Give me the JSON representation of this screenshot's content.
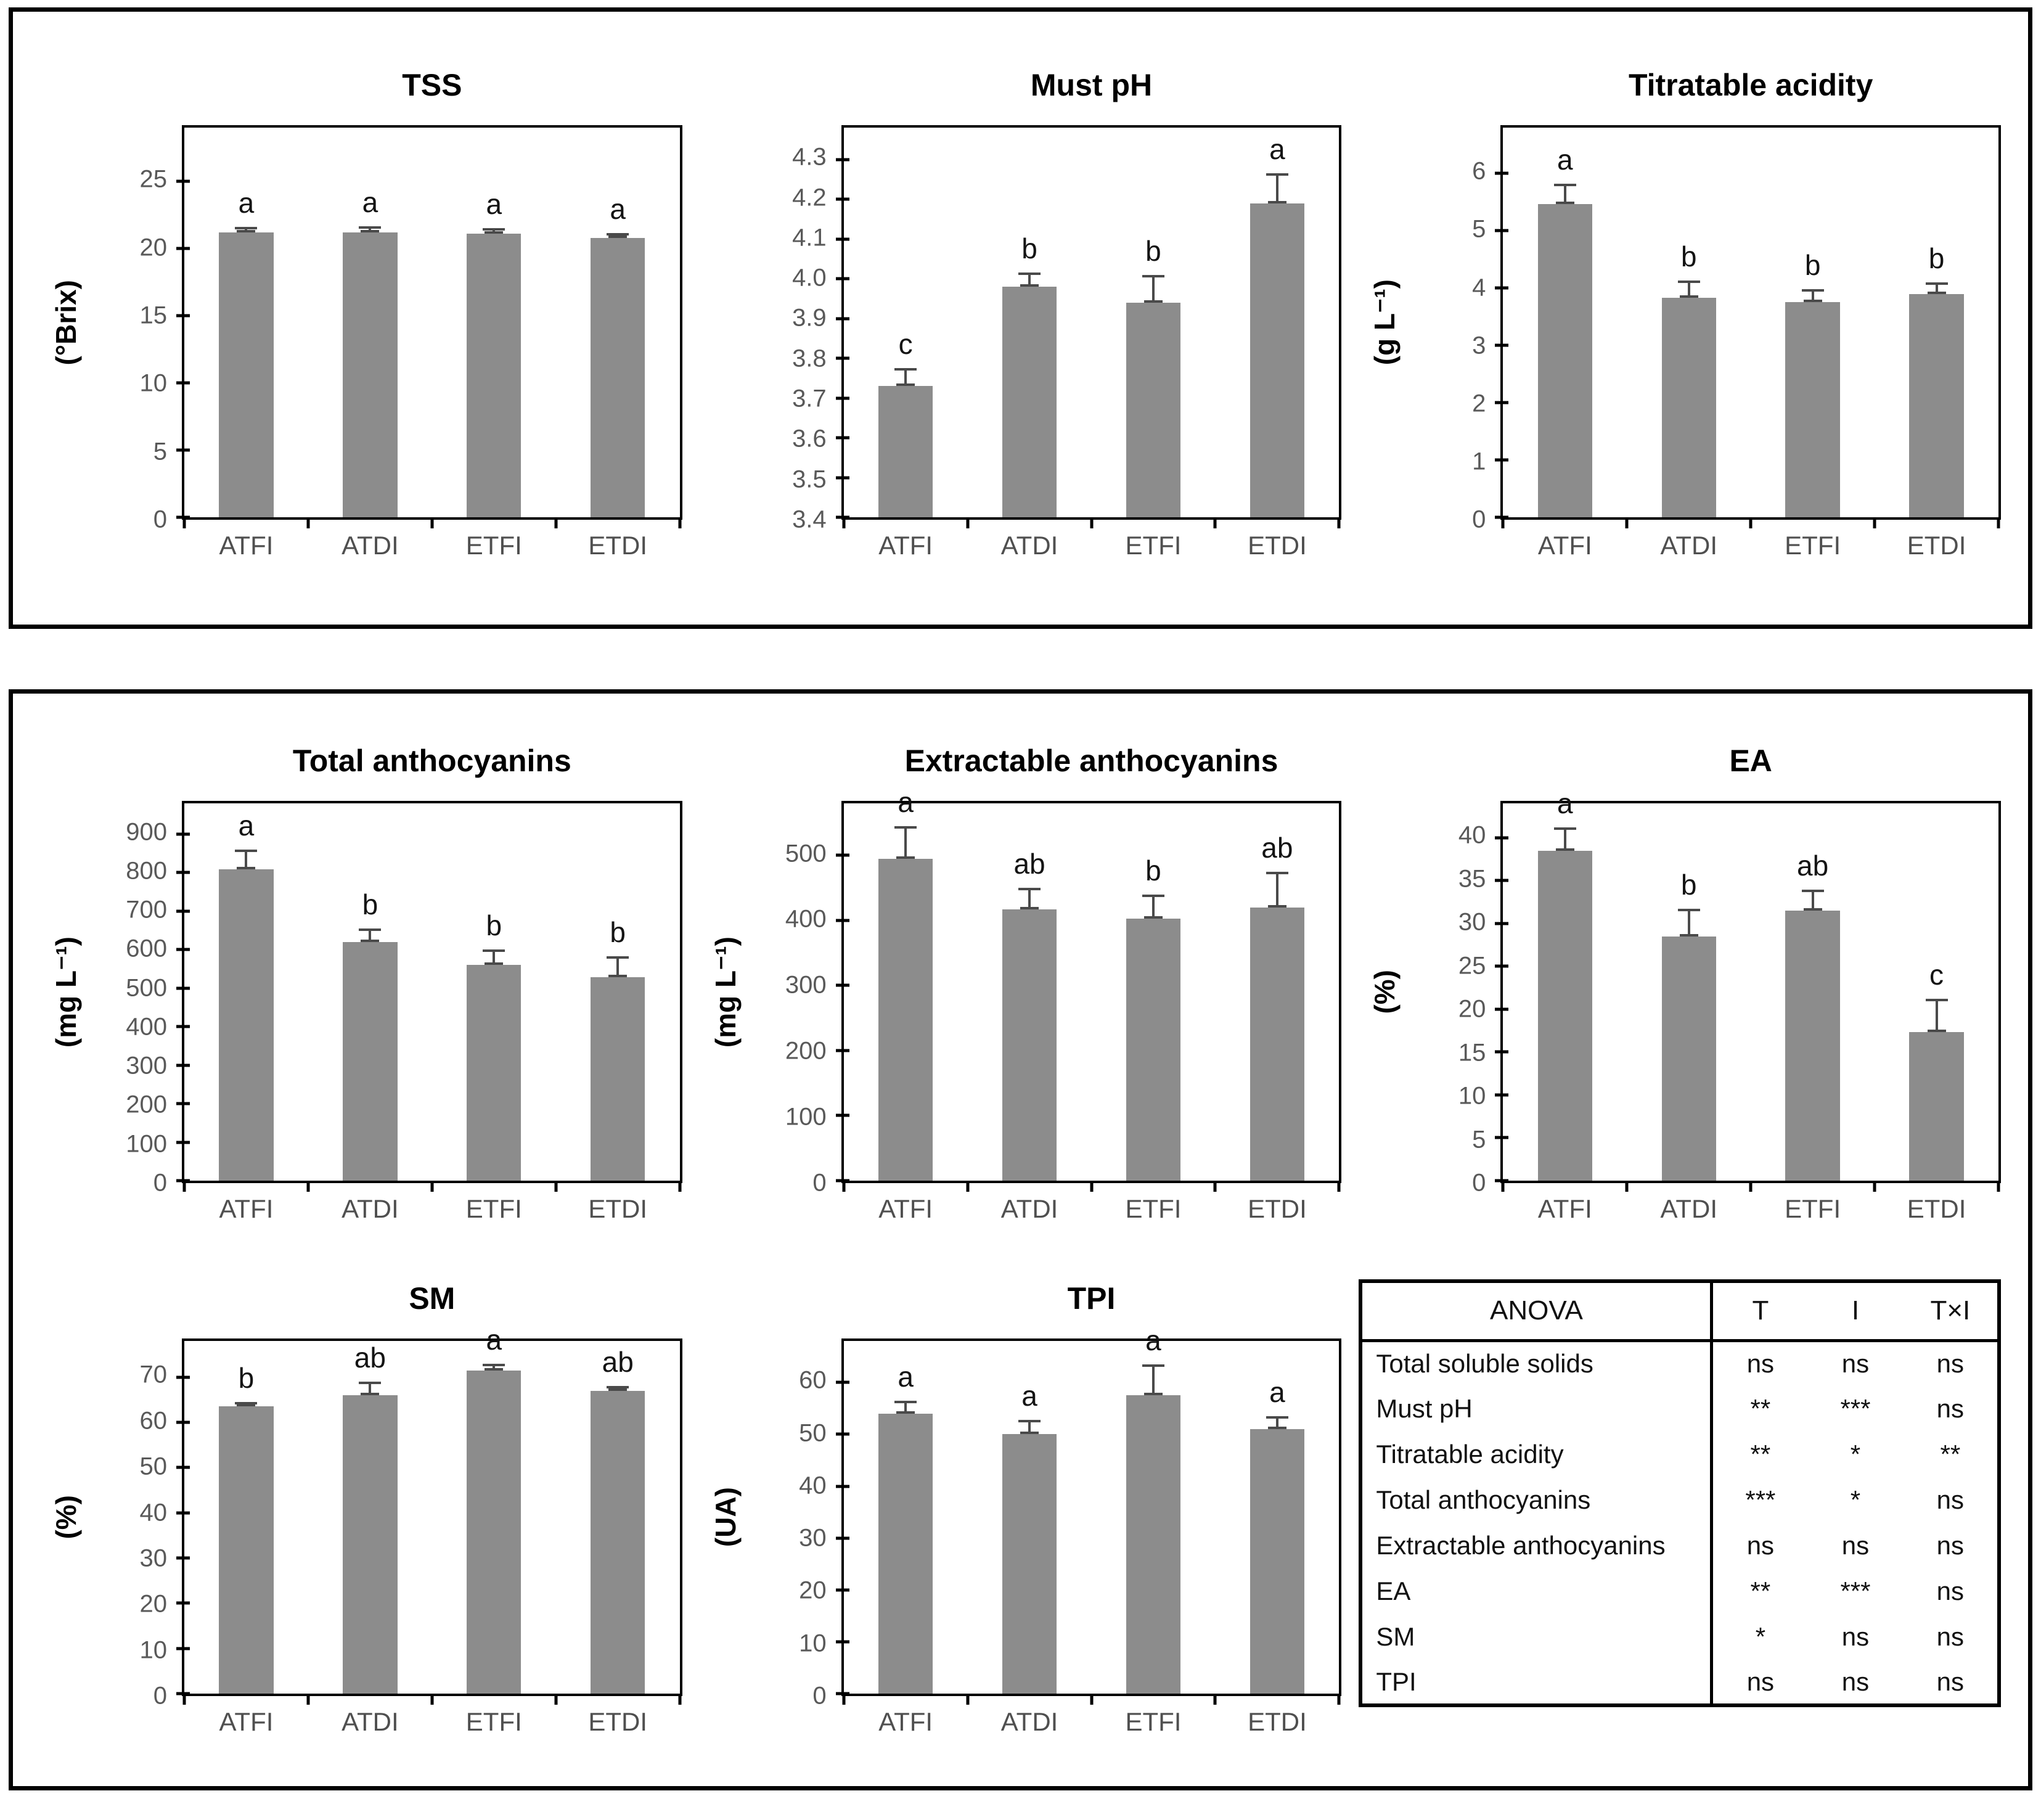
{
  "colors": {
    "bar_fill": "#8c8c8c",
    "error_bar": "#4a4a4a",
    "axis": "#000000",
    "tick_label": "#595959",
    "category_label": "#4f4f4f",
    "title": "#000000",
    "panel_border": "#000000"
  },
  "chart_data": [
    {
      "type": "bar",
      "title": "TSS",
      "ylabel": "(°Brix)",
      "categories": [
        "ATFI",
        "ATDI",
        "ETFI",
        "ETDI"
      ],
      "values": [
        21.2,
        21.2,
        21.1,
        20.8
      ],
      "errors": [
        0.4,
        0.45,
        0.4,
        0.35
      ],
      "sig_letters": [
        "a",
        "a",
        "a",
        "a"
      ],
      "ymin": 0,
      "ymax": 29,
      "yticks": [
        "0",
        "5",
        "10",
        "15",
        "20",
        "25"
      ],
      "grid": "off",
      "legend": "none"
    },
    {
      "type": "bar",
      "title": "Must pH",
      "ylabel": "",
      "categories": [
        "ATFI",
        "ATDI",
        "ETFI",
        "ETDI"
      ],
      "values": [
        3.73,
        3.98,
        3.94,
        4.19
      ],
      "errors": [
        0.045,
        0.035,
        0.07,
        0.075
      ],
      "sig_letters": [
        "c",
        "b",
        "b",
        "a"
      ],
      "ymin": 3.4,
      "ymax": 4.38,
      "yticks": [
        "3.4",
        "3.5",
        "3.6",
        "3.7",
        "3.8",
        "3.9",
        "4.0",
        "4.1",
        "4.2",
        "4.3"
      ],
      "grid": "off",
      "legend": "none"
    },
    {
      "type": "bar",
      "title": "Titratable acidity",
      "ylabel": "(g L⁻¹)",
      "categories": [
        "ATFI",
        "ATDI",
        "ETFI",
        "ETDI"
      ],
      "values": [
        5.47,
        3.83,
        3.76,
        3.9
      ],
      "errors": [
        0.35,
        0.3,
        0.22,
        0.2
      ],
      "sig_letters": [
        "a",
        "b",
        "b",
        "b"
      ],
      "ymin": 0,
      "ymax": 6.8,
      "yticks": [
        "0",
        "1",
        "2",
        "3",
        "4",
        "5",
        "6"
      ],
      "grid": "off",
      "legend": "none"
    },
    {
      "type": "bar",
      "title": "Total anthocyanins",
      "ylabel": "(mg L⁻¹)",
      "categories": [
        "ATFI",
        "ATDI",
        "ETFI",
        "ETDI"
      ],
      "values": [
        808,
        620,
        560,
        528
      ],
      "errors": [
        52,
        35,
        40,
        55
      ],
      "sig_letters": [
        "a",
        "b",
        "b",
        "b"
      ],
      "ymin": 0,
      "ymax": 980,
      "yticks": [
        "0",
        "100",
        "200",
        "300",
        "400",
        "500",
        "600",
        "700",
        "800",
        "900"
      ],
      "grid": "off",
      "legend": "none"
    },
    {
      "type": "bar",
      "title": "Extractable anthocyanins",
      "ylabel": "(mg L⁻¹)",
      "categories": [
        "ATFI",
        "ATDI",
        "ETFI",
        "ETDI"
      ],
      "values": [
        495,
        417,
        403,
        420
      ],
      "errors": [
        50,
        33,
        37,
        55
      ],
      "sig_letters": [
        "a",
        "ab",
        "b",
        "ab"
      ],
      "ymin": 0,
      "ymax": 580,
      "yticks": [
        "0",
        "100",
        "200",
        "300",
        "400",
        "500"
      ],
      "grid": "off",
      "legend": "none"
    },
    {
      "type": "bar",
      "title": "EA",
      "ylabel": "(%)",
      "categories": [
        "ATFI",
        "ATDI",
        "ETFI",
        "ETDI"
      ],
      "values": [
        38.5,
        28.5,
        31.5,
        17.3
      ],
      "errors": [
        2.7,
        3.2,
        2.4,
        3.9
      ],
      "sig_letters": [
        "a",
        "b",
        "ab",
        "c"
      ],
      "ymin": 0,
      "ymax": 44,
      "yticks": [
        "0",
        "5",
        "10",
        "15",
        "20",
        "25",
        "30",
        "35",
        "40"
      ],
      "grid": "off",
      "legend": "none"
    },
    {
      "type": "bar",
      "title": "SM",
      "ylabel": "(%)",
      "categories": [
        "ATFI",
        "ATDI",
        "ETFI",
        "ETDI"
      ],
      "values": [
        63.5,
        66,
        71.5,
        67
      ],
      "errors": [
        1,
        3,
        1.5,
        1
      ],
      "sig_letters": [
        "b",
        "ab",
        "a",
        "ab"
      ],
      "ymin": 0,
      "ymax": 78,
      "yticks": [
        "0",
        "10",
        "20",
        "30",
        "40",
        "50",
        "60",
        "70"
      ],
      "grid": "off",
      "legend": "none"
    },
    {
      "type": "bar",
      "title": "TPI",
      "ylabel": "(UA)",
      "categories": [
        "ATFI",
        "ATDI",
        "ETFI",
        "ETDI"
      ],
      "values": [
        54,
        50,
        57.5,
        51
      ],
      "errors": [
        2.5,
        2.8,
        6,
        2.5
      ],
      "sig_letters": [
        "a",
        "a",
        "a",
        "a"
      ],
      "ymin": 0,
      "ymax": 68,
      "yticks": [
        "0",
        "10",
        "20",
        "30",
        "40",
        "50",
        "60"
      ],
      "grid": "off",
      "legend": "none"
    },
    {
      "type": "table",
      "title": "ANOVA",
      "columns": [
        "T",
        "I",
        "T×I"
      ],
      "rows": [
        [
          "Total soluble solids",
          "ns",
          "ns",
          "ns"
        ],
        [
          "Must pH",
          "**",
          "***",
          "ns"
        ],
        [
          "Titratable acidity",
          "**",
          "*",
          "**"
        ],
        [
          "Total anthocyanins",
          "***",
          "*",
          "ns"
        ],
        [
          "Extractable anthocyanins",
          "ns",
          "ns",
          "ns"
        ],
        [
          "EA",
          "**",
          "***",
          "ns"
        ],
        [
          "SM",
          "*",
          "ns",
          "ns"
        ],
        [
          "TPI",
          "ns",
          "ns",
          "ns"
        ]
      ]
    }
  ]
}
